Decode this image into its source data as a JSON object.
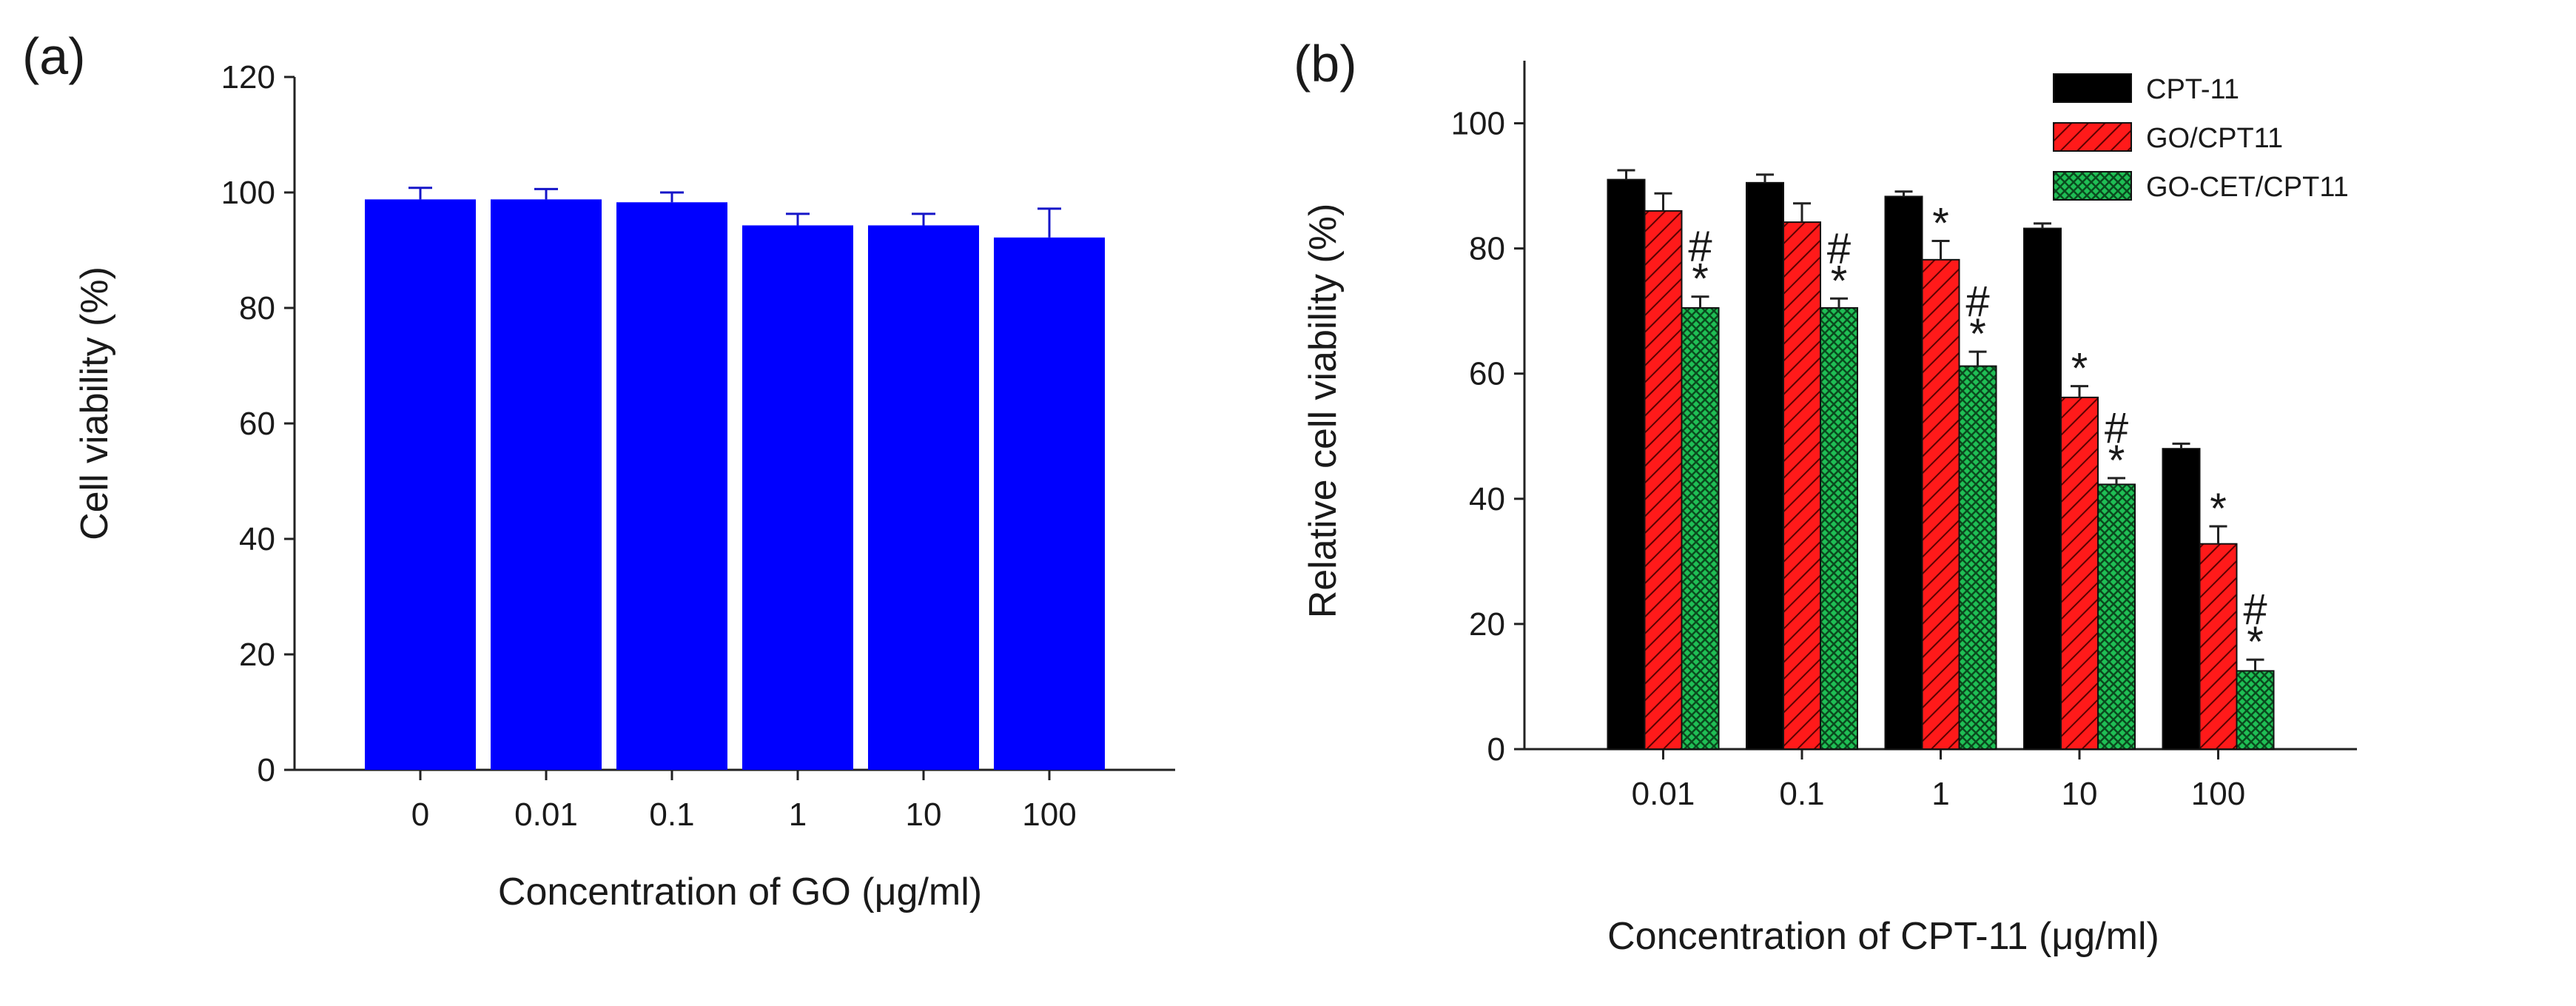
{
  "chart_data": [
    {
      "panel_label": "(a)",
      "type": "bar",
      "categories": [
        "0",
        "0.01",
        "0.1",
        "1",
        "10",
        "100"
      ],
      "series": [
        {
          "values": [
            98.8,
            98.8,
            98.3,
            94.3,
            94.3,
            92.2
          ],
          "errors": [
            2.0,
            1.8,
            1.7,
            2.0,
            2.0,
            5.0
          ],
          "color": "#0000ff"
        }
      ],
      "xlabel": "Concentration of GO (μg/ml)",
      "ylabel": "Cell viability (%)",
      "ylim": [
        0,
        120
      ],
      "yticks": [
        "0",
        "20",
        "40",
        "60",
        "80",
        "100",
        "120"
      ],
      "grid": false,
      "legend": "none"
    },
    {
      "panel_label": "(b)",
      "type": "bar",
      "categories": [
        "0.01",
        "0.1",
        "1",
        "10",
        "100"
      ],
      "series": [
        {
          "name": "CPT-11",
          "values": [
            91.0,
            90.5,
            88.3,
            83.2,
            48.0
          ],
          "errors": [
            1.5,
            1.3,
            0.8,
            0.8,
            0.8
          ],
          "color": "#000000",
          "pattern": "solid",
          "annotations": [
            "",
            "",
            "",
            "",
            ""
          ]
        },
        {
          "name": "GO/CPT11",
          "values": [
            86.0,
            84.2,
            78.2,
            56.2,
            32.8
          ],
          "errors": [
            2.8,
            3.0,
            3.0,
            1.8,
            2.8
          ],
          "color": "#ff1a1a",
          "pattern": "hatch",
          "annotations": [
            "",
            "",
            "*",
            "*",
            "*"
          ]
        },
        {
          "name": "GO-CET/CPT11",
          "values": [
            70.5,
            70.5,
            61.2,
            42.3,
            12.5
          ],
          "errors": [
            1.8,
            1.5,
            2.3,
            1.0,
            1.8
          ],
          "color": "#19b34d",
          "pattern": "crosshatch",
          "annotations": [
            "#*",
            "#*",
            "#*",
            "#*",
            "#*"
          ]
        }
      ],
      "xlabel": "Concentration of CPT-11 (μg/ml)",
      "ylabel": "Relative cell viability (%)",
      "ylim": [
        0,
        110
      ],
      "yticks": [
        "0",
        "20",
        "40",
        "60",
        "80",
        "100"
      ],
      "grid": false,
      "legend": "top-right"
    }
  ]
}
